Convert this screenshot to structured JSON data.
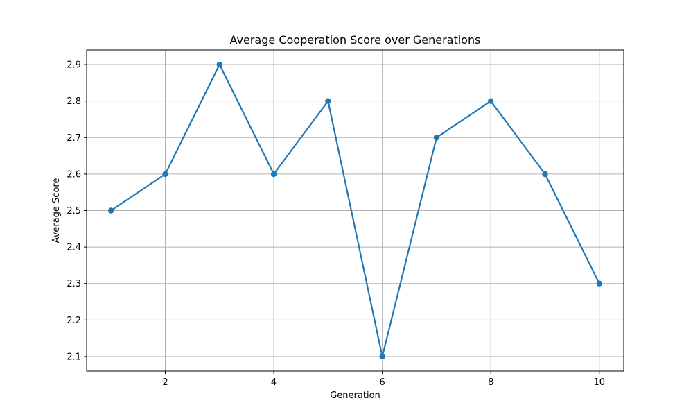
{
  "chart_data": {
    "type": "line",
    "title": "Average Cooperation Score over Generations",
    "xlabel": "Generation",
    "ylabel": "Average Score",
    "xlim": [
      0.55,
      10.45
    ],
    "ylim": [
      2.06,
      2.94
    ],
    "x_ticks": [
      2,
      4,
      6,
      8,
      10
    ],
    "x_tick_labels": [
      "2",
      "4",
      "6",
      "8",
      "10"
    ],
    "y_ticks": [
      2.1,
      2.2,
      2.3,
      2.4,
      2.5,
      2.6,
      2.7,
      2.8,
      2.9
    ],
    "y_tick_labels": [
      "2.1",
      "2.2",
      "2.3",
      "2.4",
      "2.5",
      "2.6",
      "2.7",
      "2.8",
      "2.9"
    ],
    "grid": true,
    "x": [
      1,
      2,
      3,
      4,
      5,
      6,
      7,
      8,
      9,
      10
    ],
    "series": [
      {
        "values": [
          2.5,
          2.6,
          2.9,
          2.6,
          2.8,
          2.1,
          2.7,
          2.8,
          2.6,
          2.3
        ],
        "color": "#1f77b4",
        "marker": "circle"
      }
    ]
  }
}
